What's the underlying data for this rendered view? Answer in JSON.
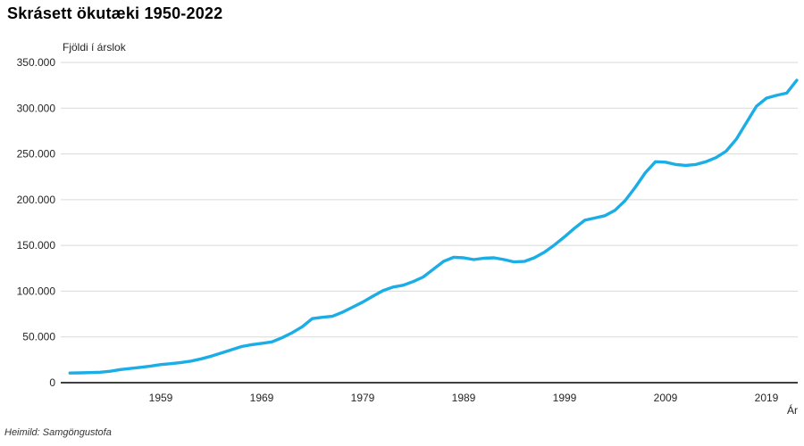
{
  "page": {
    "title": "Skrásett ökutæki 1950-2022",
    "source": "Heimild: Samgöngustofa"
  },
  "chart_data": {
    "type": "line",
    "title": "Skrásett ökutæki 1950-2022",
    "ylabel": "Fjöldi í árslok",
    "xlabel": "Ár",
    "legend": "none",
    "grid": "horizontal",
    "x_start": 1950,
    "x_end": 2022,
    "ylim": [
      0,
      350000
    ],
    "yticks": [
      0,
      50000,
      100000,
      150000,
      200000,
      250000,
      300000,
      350000
    ],
    "ytick_labels": [
      "0",
      "50.000",
      "100.000",
      "150.000",
      "200.000",
      "250.000",
      "300.000",
      "350.000"
    ],
    "xticks": [
      1959,
      1969,
      1979,
      1989,
      1999,
      2009,
      2019
    ],
    "line_color": "#1badE6",
    "grid_color": "#d9d9d9",
    "axis_color": "#000000",
    "x": [
      1950,
      1951,
      1952,
      1953,
      1954,
      1955,
      1956,
      1957,
      1958,
      1959,
      1960,
      1961,
      1962,
      1963,
      1964,
      1965,
      1966,
      1967,
      1968,
      1969,
      1970,
      1971,
      1972,
      1973,
      1974,
      1975,
      1976,
      1977,
      1978,
      1979,
      1980,
      1981,
      1982,
      1983,
      1984,
      1985,
      1986,
      1987,
      1988,
      1989,
      1990,
      1991,
      1992,
      1993,
      1994,
      1995,
      1996,
      1997,
      1998,
      1999,
      2000,
      2001,
      2002,
      2003,
      2004,
      2005,
      2006,
      2007,
      2008,
      2009,
      2010,
      2011,
      2012,
      2013,
      2014,
      2015,
      2016,
      2017,
      2018,
      2019,
      2020,
      2021,
      2022
    ],
    "values": [
      10500,
      10700,
      11000,
      11400,
      12500,
      14300,
      15500,
      16800,
      18100,
      19800,
      20800,
      22000,
      23600,
      26000,
      29000,
      32500,
      36000,
      39500,
      41500,
      43000,
      44600,
      49000,
      54500,
      61000,
      70000,
      71500,
      72500,
      77000,
      82500,
      88000,
      94500,
      100500,
      104500,
      106500,
      110500,
      115500,
      124000,
      132500,
      137000,
      136500,
      134500,
      136000,
      136500,
      134500,
      132000,
      132500,
      136500,
      142500,
      150500,
      159500,
      169000,
      177500,
      180000,
      182500,
      188500,
      199000,
      213500,
      229500,
      241500,
      241000,
      238500,
      237500,
      238500,
      241500,
      246000,
      253000,
      266000,
      284000,
      302000,
      311000,
      314000,
      316500,
      330500
    ]
  }
}
